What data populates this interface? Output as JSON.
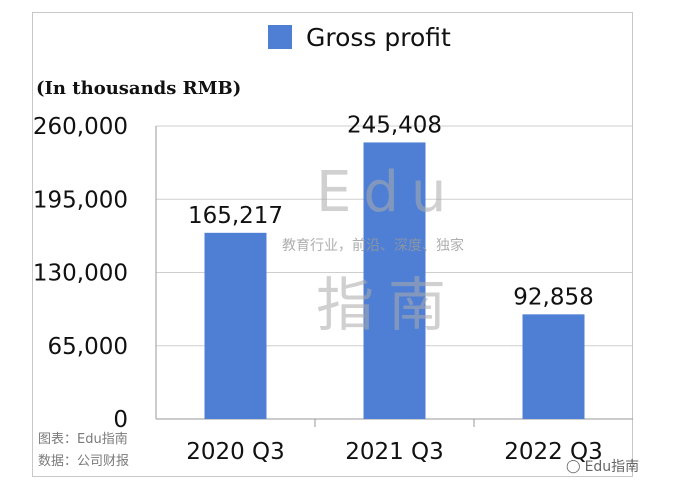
{
  "chart_data": {
    "type": "bar",
    "categories": [
      "2020 Q3",
      "2021 Q3",
      "2022 Q3"
    ],
    "series": [
      {
        "name": "Gross profit",
        "values": [
          165217,
          245408,
          92858
        ],
        "color": "#4f7fd4"
      }
    ],
    "data_labels": [
      "165,217",
      "245,408",
      "92,858"
    ],
    "yticks": [
      "0",
      "65,000",
      "130,000",
      "195,000",
      "260,000"
    ],
    "ylim": [
      0,
      260000
    ],
    "ylabel": "(In thousands RMB)",
    "legend_position": "top",
    "grid": true
  },
  "watermark": {
    "line1": "Edu",
    "tagline": "教育行业，前沿、深度、独家",
    "line2": "指南"
  },
  "footer": {
    "chart_credit": "图表：Edu指南",
    "source": "数据：公司财报"
  },
  "credit": {
    "icon": "wechat-icon",
    "text": "Edu指南"
  }
}
